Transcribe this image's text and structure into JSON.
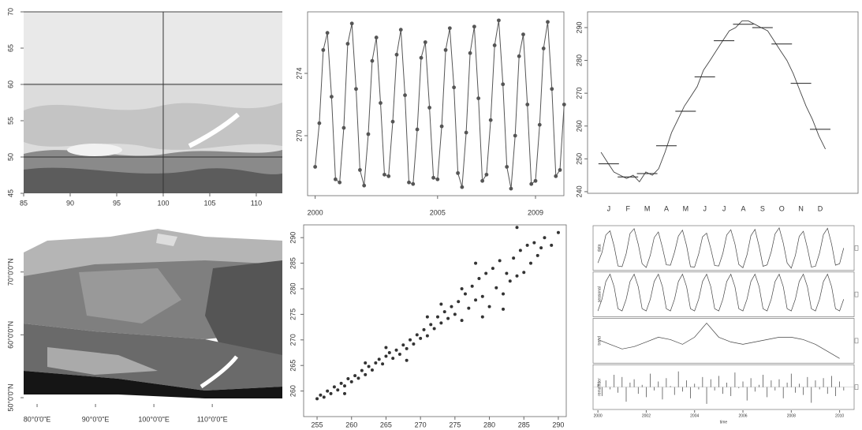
{
  "chart_data": [
    {
      "type": "raster",
      "xlim": [
        85,
        112.8
      ],
      "ylim": [
        45,
        70
      ],
      "xticks": [
        85,
        90,
        95,
        100,
        105,
        110
      ],
      "yticks": [
        45,
        50,
        55,
        60,
        65,
        70
      ],
      "hlines": [
        50,
        60
      ],
      "vlines": [
        100
      ]
    },
    {
      "type": "line",
      "color": "#555555",
      "x": [
        2000,
        2000.17,
        2000.33,
        2000.5,
        2000.67,
        2000.83,
        2001,
        2001.17,
        2001.33,
        2001.5,
        2001.67,
        2001.83,
        2002,
        2002.17,
        2002.33,
        2002.5,
        2002.67,
        2002.83,
        2003,
        2003.17,
        2003.33,
        2003.5,
        2003.67,
        2003.83,
        2004,
        2004.17,
        2004.33,
        2004.5,
        2004.67,
        2004.83,
        2005,
        2005.17,
        2005.33,
        2005.5,
        2005.67,
        2005.83,
        2006,
        2006.17,
        2006.33,
        2006.5,
        2006.67,
        2006.83,
        2007,
        2007.17,
        2007.33,
        2007.5,
        2007.67,
        2007.83,
        2008,
        2008.17,
        2008.33,
        2008.5,
        2008.67,
        2008.83,
        2009,
        2009.17,
        2009.33,
        2009.5,
        2009.67,
        2009.83,
        2010,
        2010.17
      ],
      "values": [
        268,
        270.8,
        275.5,
        276.6,
        272.5,
        267.2,
        267.0,
        270.5,
        275.9,
        277.2,
        273.0,
        267.8,
        266.8,
        270.1,
        274.8,
        276.3,
        272.1,
        267.5,
        267.4,
        270.9,
        275.2,
        276.8,
        272.6,
        267.0,
        266.9,
        270.4,
        275.0,
        276.0,
        271.8,
        267.3,
        267.2,
        270.6,
        275.5,
        276.9,
        273.1,
        267.6,
        266.7,
        270.2,
        275.3,
        277.0,
        272.4,
        267.1,
        267.5,
        271.0,
        275.8,
        277.4,
        273.3,
        268.0,
        266.6,
        270.0,
        275.1,
        276.5,
        272.0,
        266.9,
        267.1,
        270.7,
        275.6,
        277.3,
        273.0,
        267.4,
        267.8,
        272.0
      ],
      "xlim": [
        1999.69,
        2010.16
      ],
      "ylim": [
        266.15,
        277.95
      ],
      "xticks": [
        2000,
        2005,
        2009
      ],
      "yticks": [
        270,
        274
      ]
    },
    {
      "type": "climatology",
      "categories": [
        "J",
        "F",
        "M",
        "A",
        "M",
        "J",
        "J",
        "A",
        "S",
        "O",
        "N",
        "D"
      ],
      "values": [
        248.5,
        244.5,
        245.5,
        254,
        264.5,
        275,
        286,
        291,
        290,
        285,
        273,
        259
      ],
      "x": [
        0.6,
        0.93,
        1.27,
        1.6,
        1.93,
        2.27,
        2.6,
        2.93,
        3.27,
        3.6,
        3.93,
        4.27,
        4.6,
        4.93,
        5.27,
        5.6,
        5.93,
        6.27,
        6.6,
        6.93,
        7.27,
        7.6,
        7.93,
        8.27,
        8.6,
        8.93,
        9.27,
        9.6,
        9.93,
        10.27,
        10.6,
        10.93,
        11.27,
        11.6,
        11.93,
        12.27
      ],
      "daily": [
        252,
        249,
        246,
        245,
        244,
        245,
        243,
        246,
        245,
        247,
        252,
        258,
        262,
        266,
        269,
        272,
        277,
        280,
        283,
        286,
        289,
        290,
        292,
        292,
        291,
        290,
        289,
        286,
        283,
        280,
        276,
        271,
        266,
        262,
        257,
        253
      ],
      "xlim": [
        -0.1,
        13.97
      ],
      "ylim": [
        239.5,
        294.8
      ],
      "yticks": [
        240,
        250,
        260,
        270,
        280,
        290
      ]
    },
    {
      "type": "map",
      "xlim": [
        77.7,
        122
      ],
      "ylim": [
        49,
        77.5
      ],
      "xticks": [
        {
          "value": 80,
          "label": "80°0'0\"E"
        },
        {
          "value": 90,
          "label": "90°0'0\"E"
        },
        {
          "value": 100,
          "label": "100°0'0\"E"
        },
        {
          "value": 110,
          "label": "110°0'0\"E"
        }
      ],
      "yticks": [
        {
          "value": 50,
          "label": "50°0'0\"N"
        },
        {
          "value": 60,
          "label": "60°0'0\"N"
        },
        {
          "value": 70,
          "label": "70°0'0\"N"
        }
      ]
    },
    {
      "type": "scatter",
      "color": "#333333",
      "x": [
        255,
        255.5,
        256,
        256.5,
        257,
        257.5,
        258,
        258.5,
        259,
        259.5,
        260,
        260.5,
        261,
        261.5,
        262,
        262.5,
        263,
        263.5,
        264,
        264.5,
        265,
        265.5,
        266,
        266.5,
        267,
        267.5,
        268,
        268.5,
        269,
        269.5,
        270,
        270.5,
        271,
        271.5,
        272,
        272.5,
        273,
        273.5,
        274,
        274.5,
        275,
        275.5,
        276,
        276.5,
        277,
        277.5,
        278,
        278.5,
        279,
        279.5,
        280,
        280.5,
        281,
        281.5,
        282,
        282.5,
        283,
        283.5,
        284,
        284.5,
        285,
        285.5,
        286,
        286.5,
        287,
        287.5,
        288,
        289,
        290,
        271,
        268,
        276,
        279,
        282,
        273,
        265,
        262,
        259,
        284,
        278
      ],
      "values": [
        258.5,
        259.2,
        258.8,
        260,
        259.5,
        260.8,
        260.2,
        261.5,
        261,
        262.4,
        261.8,
        263,
        262.5,
        264,
        263.2,
        264.8,
        264.1,
        265.5,
        266.2,
        265.3,
        266.8,
        267.5,
        266.4,
        268,
        267.2,
        269,
        268.3,
        270,
        269.2,
        271,
        270.3,
        272,
        270.8,
        273,
        272.2,
        274.5,
        273.3,
        275.5,
        274.2,
        276.5,
        275,
        277.5,
        273.8,
        279,
        276.2,
        280.5,
        277.8,
        282,
        278.5,
        283,
        276.5,
        284,
        280.2,
        285.5,
        279,
        283,
        281.5,
        286,
        282.5,
        287.5,
        283.2,
        288.5,
        285,
        289,
        286.5,
        288,
        290,
        288.5,
        291,
        274.5,
        266,
        280,
        274.5,
        276,
        277,
        268.5,
        265.5,
        259.5,
        292,
        285
      ],
      "xlim": [
        253.05,
        291.15
      ],
      "ylim": [
        255,
        292.5
      ],
      "xticks": [
        255,
        260,
        265,
        270,
        275,
        280,
        285,
        290
      ],
      "yticks": [
        260,
        265,
        270,
        275,
        280,
        285,
        290
      ]
    },
    {
      "type": "stl",
      "xlabel": "time",
      "xlim": [
        1999.8,
        2010.6
      ],
      "xticks": [
        2000,
        2002,
        2004,
        2006,
        2008,
        2010
      ],
      "panels": [
        {
          "name": "data",
          "ylim": [
            266,
            278
          ]
        },
        {
          "name": "seasonal",
          "ylim": [
            -6,
            6.2
          ],
          "values": [
            -4.4,
            -1.2,
            3.6,
            5.6,
            2.2,
            -3.8,
            -4.4,
            -1.2,
            3.6,
            5.6,
            2.2,
            -3.8,
            -4.4,
            -1.2,
            3.6,
            5.6,
            2.2,
            -3.8,
            -4.4,
            -1.2,
            3.6,
            5.6,
            2.2,
            -3.8,
            -4.4,
            -1.2,
            3.6,
            5.6,
            2.2,
            -3.8,
            -4.4,
            -1.2,
            3.6,
            5.6,
            2.2,
            -3.8,
            -4.4,
            -1.2,
            3.6,
            5.6,
            2.2,
            -3.8,
            -4.4,
            -1.2,
            3.6,
            5.6,
            2.2,
            -3.8,
            -4.4,
            -1.2,
            3.6,
            5.6,
            2.2,
            -3.8,
            -4.4,
            -1.2,
            3.6,
            5.6,
            2.2,
            -3.8,
            -4.4,
            -1.2
          ]
        },
        {
          "name": "trend",
          "ylim": [
            269.8,
            271.7
          ],
          "x": [
            2000,
            2000.5,
            2001,
            2001.5,
            2002,
            2002.5,
            2003,
            2003.5,
            2004,
            2004.5,
            2005,
            2005.5,
            2006,
            2006.5,
            2007,
            2007.5,
            2008,
            2008.5,
            2009,
            2009.5,
            2010
          ],
          "values": [
            270.8,
            270.6,
            270.4,
            270.5,
            270.7,
            270.9,
            270.8,
            270.6,
            270.9,
            271.5,
            270.9,
            270.7,
            270.6,
            270.7,
            270.8,
            270.9,
            270.9,
            270.8,
            270.6,
            270.3,
            270.0
          ]
        },
        {
          "name": "remainder",
          "ylim": [
            -2,
            2
          ],
          "values": [
            0.3,
            -0.8,
            0.6,
            -0.2,
            1.1,
            -0.5,
            0.9,
            -1.3,
            0.4,
            0.7,
            -0.6,
            0.2,
            -0.9,
            1.2,
            -0.3,
            0.5,
            -1.1,
            0.8,
            0.1,
            -0.7,
            1.4,
            -0.4,
            0.6,
            -1.0,
            0.3,
            -0.2,
            0.9,
            -1.5,
            0.7,
            -0.3,
            1.0,
            -0.6,
            0.4,
            -0.8,
            1.3,
            -0.1,
            0.5,
            -1.2,
            0.8,
            -0.4,
            0.2,
            1.1,
            -0.9,
            0.6,
            -0.3,
            0.7,
            -1.0,
            0.4,
            1.2,
            -0.5,
            0.3,
            -0.7,
            0.9,
            -1.4,
            0.6,
            -0.2,
            0.8,
            -0.6,
            1.0,
            -0.8,
            0.5,
            -0.3
          ]
        }
      ]
    }
  ]
}
